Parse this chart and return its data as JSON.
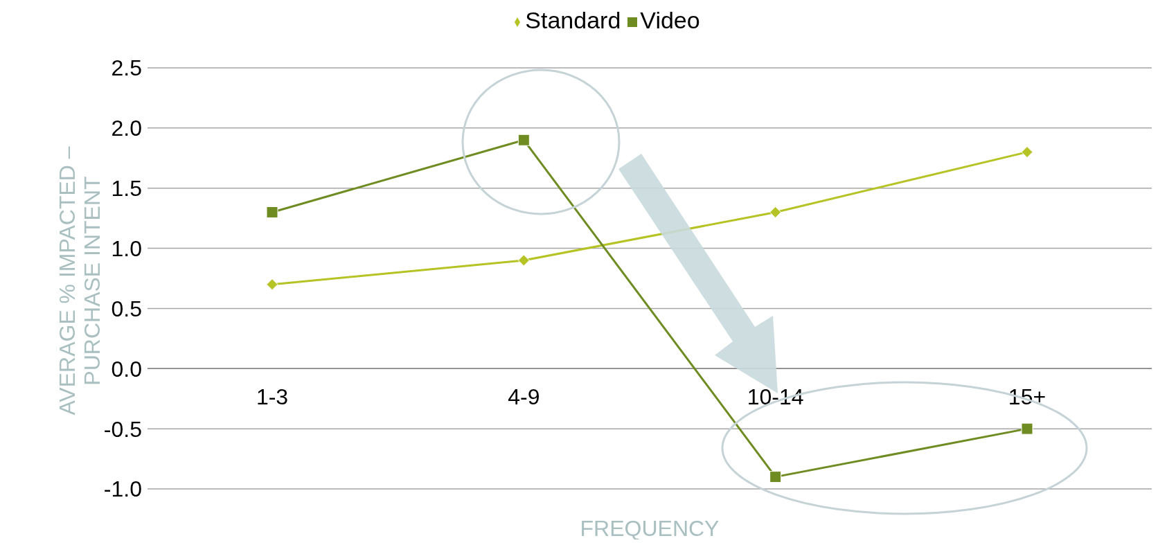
{
  "chart_data": {
    "type": "line",
    "xlabel": "FREQUENCY",
    "ylabel": "AVERAGE % IMPACTED – PURCHASE INTENT",
    "categories": [
      "1-3",
      "4-9",
      "10-14",
      "15+"
    ],
    "series": [
      {
        "name": "Standard",
        "color": "#b5c325",
        "marker": "diamond",
        "values": [
          0.7,
          0.9,
          1.3,
          1.8
        ]
      },
      {
        "name": "Video",
        "color": "#6f8c22",
        "marker": "square",
        "values": [
          1.3,
          1.9,
          -0.9,
          -0.5
        ]
      }
    ],
    "ylim": [
      -1,
      2.5
    ],
    "yticks": [
      {
        "value": -1,
        "label": "-1.0"
      },
      -0.5,
      {
        "value": 0,
        "label": "0.0"
      },
      0.5,
      {
        "value": 1,
        "label": "1.0"
      },
      1.5,
      {
        "value": 2,
        "label": "2.0"
      },
      2.5
    ],
    "grid": "y",
    "legend": "top"
  }
}
